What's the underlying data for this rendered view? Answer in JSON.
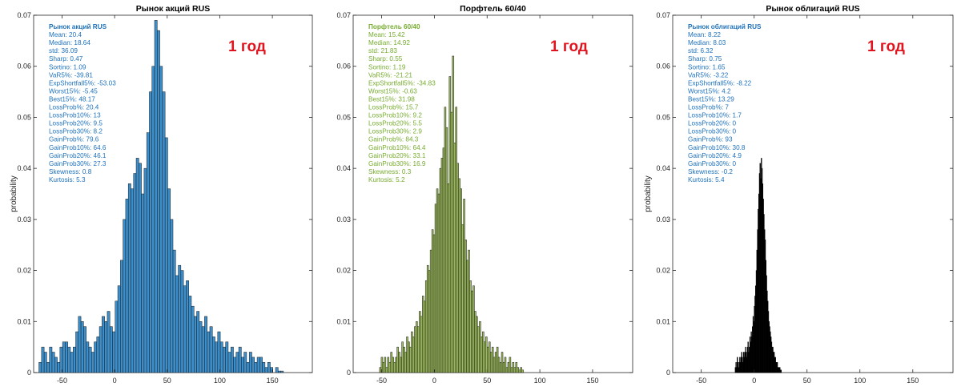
{
  "badge_text": "1 год",
  "chart_data": [
    {
      "type": "bar",
      "title": "Рынок акций RUS",
      "ylabel": "probability",
      "xlim": [
        -77,
        188
      ],
      "ylim": [
        0,
        0.07
      ],
      "xticks": [
        -50,
        0,
        50,
        100,
        150
      ],
      "yticks": [
        0,
        0.01,
        0.02,
        0.03,
        0.04,
        0.05,
        0.06,
        0.07
      ],
      "ytick_labels": [
        "0",
        "0.01",
        "0.02",
        "0.03",
        "0.04",
        "0.05",
        "0.06",
        "0.07"
      ],
      "bar_color": "#3d8fcb",
      "text_color": "#1f72bd",
      "bin_start": -72,
      "bin_width": 2.5,
      "bin_values": [
        0.002,
        0.005,
        0.004,
        0.002,
        0.005,
        0.004,
        0.003,
        0.002,
        0.005,
        0.006,
        0.006,
        0.005,
        0.004,
        0.005,
        0.008,
        0.011,
        0.01,
        0.009,
        0.006,
        0.005,
        0.004,
        0.006,
        0.007,
        0.009,
        0.011,
        0.01,
        0.012,
        0.009,
        0.008,
        0.014,
        0.017,
        0.022,
        0.03,
        0.034,
        0.037,
        0.036,
        0.039,
        0.042,
        0.041,
        0.035,
        0.04,
        0.047,
        0.055,
        0.06,
        0.069,
        0.067,
        0.06,
        0.055,
        0.046,
        0.036,
        0.03,
        0.024,
        0.019,
        0.021,
        0.02,
        0.017,
        0.018,
        0.015,
        0.013,
        0.011,
        0.012,
        0.01,
        0.009,
        0.011,
        0.008,
        0.009,
        0.007,
        0.006,
        0.008,
        0.006,
        0.005,
        0.006,
        0.004,
        0.005,
        0.003,
        0.004,
        0.005,
        0.003,
        0.004,
        0.002,
        0.004,
        0.003,
        0.002,
        0.003,
        0.003,
        0.002,
        0.001,
        0.002,
        0.001,
        0.0,
        0.001,
        0.0003,
        0.0003
      ],
      "stats_title": "Рынок акций RUS",
      "stats": [
        "Mean: 20.4",
        "Median: 18.64",
        "std: 36.09",
        "Sharp: 0.47",
        "Sortino: 1.09",
        "VaR5%: -39.81",
        "ExpShortfall5%: -53.03",
        "Worst15%: -5.45",
        "Best15%: 48.17",
        "LossProb%: 20.4",
        "LossProb10%: 13",
        "LossProb20%: 9.5",
        "LossProb30%: 8.2",
        "GainProb%: 79.6",
        "GainProb10%: 64.6",
        "GainProb20%: 46.1",
        "GainProb30%: 27.3",
        "Skewness: 0.8",
        "Kurtosis: 5.3"
      ]
    },
    {
      "type": "bar",
      "title": "Порфтель 60/40",
      "ylabel": "",
      "xlim": [
        -77,
        188
      ],
      "ylim": [
        0,
        0.07
      ],
      "xticks": [
        -50,
        0,
        50,
        100,
        150
      ],
      "yticks": [
        0,
        0.01,
        0.02,
        0.03,
        0.04,
        0.05,
        0.06,
        0.07
      ],
      "ytick_labels": [
        "0",
        "0.01",
        "0.02",
        "0.03",
        "0.04",
        "0.05",
        "0.06",
        "0.07"
      ],
      "bar_color": "#9dbc5b",
      "text_color": "#77ac30",
      "bin_start": -52,
      "bin_width": 1.5,
      "bin_values": [
        0.001,
        0.003,
        0.002,
        0.003,
        0.001,
        0.003,
        0.002,
        0.004,
        0.003,
        0.002,
        0.003,
        0.005,
        0.004,
        0.003,
        0.006,
        0.005,
        0.004,
        0.007,
        0.006,
        0.005,
        0.008,
        0.007,
        0.009,
        0.01,
        0.009,
        0.012,
        0.011,
        0.015,
        0.014,
        0.018,
        0.021,
        0.02,
        0.024,
        0.028,
        0.027,
        0.033,
        0.036,
        0.035,
        0.04,
        0.042,
        0.044,
        0.052,
        0.048,
        0.037,
        0.058,
        0.051,
        0.062,
        0.045,
        0.052,
        0.041,
        0.038,
        0.036,
        0.029,
        0.034,
        0.026,
        0.022,
        0.024,
        0.018,
        0.016,
        0.017,
        0.012,
        0.011,
        0.009,
        0.01,
        0.007,
        0.008,
        0.006,
        0.007,
        0.005,
        0.006,
        0.004,
        0.005,
        0.003,
        0.004,
        0.005,
        0.003,
        0.002,
        0.004,
        0.002,
        0.003,
        0.001,
        0.002,
        0.003,
        0.001,
        0.002,
        0.001,
        0.002,
        0.001,
        0.0005,
        0.001,
        0.0005
      ],
      "stats_title": "Порфтель 60/40",
      "stats": [
        "Mean: 15.42",
        "Median: 14.92",
        "std: 21.83",
        "Sharp: 0.55",
        "Sortino: 1.19",
        "VaR5%: -21.21",
        "ExpShortfall5%: -34.83",
        "Worst15%: -0.63",
        "Best15%: 31.98",
        "LossProb%: 15.7",
        "LossProb10%: 9.2",
        "LossProb20%: 5.5",
        "LossProb30%: 2.9",
        "GainProb%: 84.3",
        "GainProb10%: 64.4",
        "GainProb20%: 33.1",
        "GainProb30%: 16.9",
        "Skewness: 0.3",
        "Kurtosis: 5.2"
      ]
    },
    {
      "type": "bar",
      "title": "Рынок облигаций RUS",
      "ylabel": "probability",
      "xlim": [
        -77,
        188
      ],
      "ylim": [
        0,
        0.07
      ],
      "xticks": [
        -50,
        0,
        50,
        100,
        150
      ],
      "yticks": [
        0,
        0.01,
        0.02,
        0.03,
        0.04,
        0.05,
        0.06,
        0.07
      ],
      "ytick_labels": [
        "0",
        "0.01",
        "0.02",
        "0.03",
        "0.04",
        "0.05",
        "0.06",
        "0.07"
      ],
      "bar_color": "#000000",
      "text_color": "#1f72bd",
      "bin_start": -18,
      "bin_width": 0.6,
      "bin_values": [
        0.001,
        0.002,
        0.001,
        0.003,
        0.002,
        0.001,
        0.002,
        0.003,
        0.002,
        0.003,
        0.004,
        0.003,
        0.002,
        0.004,
        0.003,
        0.004,
        0.005,
        0.004,
        0.003,
        0.005,
        0.006,
        0.004,
        0.005,
        0.007,
        0.006,
        0.008,
        0.007,
        0.009,
        0.011,
        0.01,
        0.013,
        0.015,
        0.017,
        0.02,
        0.024,
        0.028,
        0.032,
        0.035,
        0.039,
        0.041,
        0.038,
        0.042,
        0.04,
        0.037,
        0.034,
        0.031,
        0.028,
        0.026,
        0.022,
        0.019,
        0.016,
        0.014,
        0.012,
        0.01,
        0.009,
        0.008,
        0.007,
        0.006,
        0.005,
        0.005,
        0.004,
        0.004,
        0.003,
        0.003,
        0.002,
        0.002,
        0.002,
        0.001,
        0.001,
        0.001,
        0.001,
        0.0005,
        0.0005
      ],
      "stats_title": "Рынок облигаций RUS",
      "stats": [
        "Mean: 8.22",
        "Median: 8.03",
        "std: 6.32",
        "Sharp: 0.75",
        "Sortino: 1.65",
        "VaR5%: -3.22",
        "ExpShortfall5%: -8.22",
        "Worst15%: 4.2",
        "Best15%: 13.29",
        "LossProb%: 7",
        "LossProb10%: 1.7",
        "LossProb20%: 0",
        "LossProb30%: 0",
        "GainProb%: 93",
        "GainProb10%: 30.8",
        "GainProb20%: 4.9",
        "GainProb30%: 0",
        "Skewness: -0.2",
        "Kurtosis: 5.4"
      ]
    }
  ]
}
